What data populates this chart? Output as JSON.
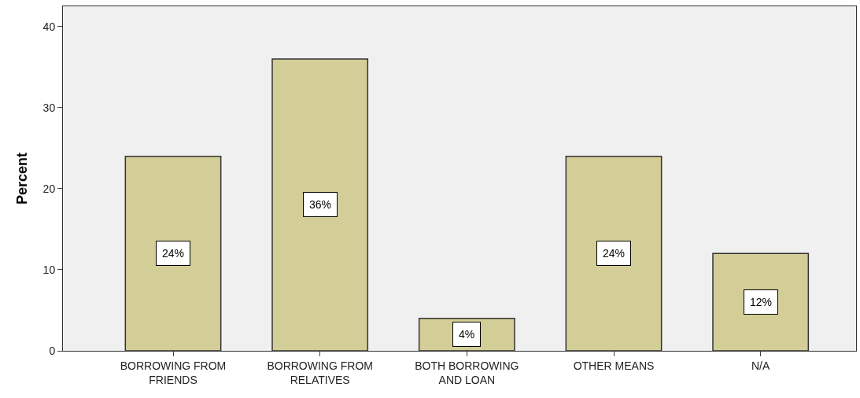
{
  "chart_data": {
    "type": "bar",
    "ylabel": "Percent",
    "categories": [
      "BORROWING FROM FRIENDS",
      "BORROWING FROM RELATIVES",
      "BOTH BORROWING AND LOAN",
      "OTHER MEANS",
      "N/A"
    ],
    "values": [
      24,
      36,
      4,
      24,
      12
    ],
    "value_labels": [
      "24%",
      "36%",
      "4%",
      "24%",
      "12%"
    ],
    "color": "#d3ce97",
    "ylim": [
      0,
      42.5
    ],
    "yticks": [
      0,
      10,
      20,
      30,
      40
    ],
    "grid": false,
    "legend": false
  }
}
